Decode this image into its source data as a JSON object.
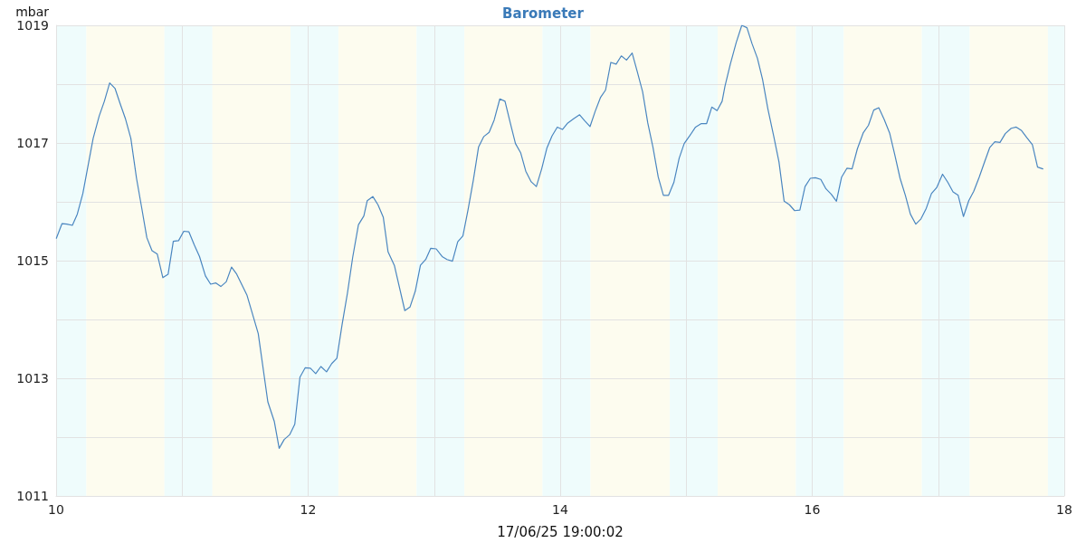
{
  "chart_data": {
    "type": "line",
    "title": "Barometer",
    "xlabel": "17/06/25 19:00:02",
    "ylabel": "mbar",
    "x": [
      10.002,
      10.047,
      10.085,
      10.129,
      10.168,
      10.212,
      10.294,
      10.342,
      10.383,
      10.425,
      10.467,
      10.508,
      10.549,
      10.593,
      10.638,
      10.679,
      10.72,
      10.761,
      10.803,
      10.847,
      10.889,
      10.93,
      10.972,
      11.013,
      11.054,
      11.096,
      11.138,
      11.185,
      11.226,
      11.268,
      11.307,
      11.35,
      11.392,
      11.433,
      11.515,
      11.604,
      11.68,
      11.731,
      11.77,
      11.81,
      11.853,
      11.894,
      11.935,
      11.977,
      12.018,
      12.06,
      12.101,
      12.146,
      12.187,
      12.228,
      12.269,
      12.312,
      12.353,
      12.399,
      12.442,
      12.469,
      12.513,
      12.554,
      12.596,
      12.634,
      12.684,
      12.725,
      12.767,
      12.808,
      12.85,
      12.891,
      12.933,
      12.973,
      13.016,
      13.063,
      13.102,
      13.145,
      13.187,
      13.228,
      13.27,
      13.311,
      13.352,
      13.394,
      13.436,
      13.476,
      13.521,
      13.562,
      13.604,
      13.645,
      13.687,
      13.727,
      13.77,
      13.811,
      13.853,
      13.894,
      13.935,
      13.977,
      14.018,
      14.06,
      14.106,
      14.154,
      14.194,
      14.237,
      14.278,
      14.319,
      14.36,
      14.402,
      14.444,
      14.485,
      14.526,
      14.571,
      14.612,
      14.654,
      14.695,
      14.736,
      14.778,
      14.819,
      14.86,
      14.902,
      14.944,
      14.984,
      15.027,
      15.074,
      15.12,
      15.162,
      15.203,
      15.245,
      15.285,
      15.307,
      15.35,
      15.397,
      15.441,
      15.482,
      15.522,
      15.565,
      15.606,
      15.648,
      15.695,
      15.736,
      15.777,
      15.819,
      15.86,
      15.902,
      15.943,
      15.985,
      16.025,
      16.068,
      16.109,
      16.151,
      16.192,
      16.233,
      16.275,
      16.316,
      16.358,
      16.404,
      16.446,
      16.488,
      16.528,
      16.571,
      16.614,
      16.656,
      16.697,
      16.739,
      16.779,
      16.822,
      16.863,
      16.905,
      16.946,
      16.987,
      17.034,
      17.076,
      17.117,
      17.158,
      17.2,
      17.242,
      17.282,
      17.325,
      17.366,
      17.408,
      17.449,
      17.49,
      17.532,
      17.579,
      17.619,
      17.661,
      17.703,
      17.747,
      17.788,
      17.83
    ],
    "series": [
      {
        "color": "#4a86c0",
        "values": [
          1015.38,
          1015.63,
          1015.62,
          1015.6,
          1015.79,
          1016.14,
          1017.08,
          1017.46,
          1017.71,
          1018.02,
          1017.93,
          1017.67,
          1017.42,
          1017.08,
          1016.4,
          1015.9,
          1015.39,
          1015.17,
          1015.11,
          1014.71,
          1014.77,
          1015.33,
          1015.34,
          1015.5,
          1015.49,
          1015.27,
          1015.07,
          1014.74,
          1014.6,
          1014.62,
          1014.56,
          1014.64,
          1014.89,
          1014.77,
          1014.41,
          1013.76,
          1012.6,
          1012.27,
          1011.81,
          1011.96,
          1012.04,
          1012.22,
          1013.02,
          1013.18,
          1013.17,
          1013.08,
          1013.2,
          1013.11,
          1013.25,
          1013.34,
          1013.91,
          1014.45,
          1015.05,
          1015.61,
          1015.76,
          1016.02,
          1016.09,
          1015.95,
          1015.74,
          1015.15,
          1014.92,
          1014.54,
          1014.15,
          1014.21,
          1014.48,
          1014.92,
          1015.02,
          1015.21,
          1015.2,
          1015.07,
          1015.02,
          1014.99,
          1015.32,
          1015.42,
          1015.88,
          1016.37,
          1016.93,
          1017.11,
          1017.18,
          1017.39,
          1017.75,
          1017.71,
          1017.34,
          1016.99,
          1016.83,
          1016.52,
          1016.34,
          1016.26,
          1016.56,
          1016.91,
          1017.12,
          1017.27,
          1017.23,
          1017.34,
          1017.41,
          1017.48,
          1017.38,
          1017.28,
          1017.54,
          1017.77,
          1017.9,
          1018.37,
          1018.34,
          1018.48,
          1018.41,
          1018.53,
          1018.21,
          1017.87,
          1017.34,
          1016.93,
          1016.42,
          1016.11,
          1016.11,
          1016.33,
          1016.74,
          1016.99,
          1017.12,
          1017.27,
          1017.33,
          1017.33,
          1017.61,
          1017.55,
          1017.71,
          1017.96,
          1018.34,
          1018.71,
          1019,
          1018.96,
          1018.69,
          1018.44,
          1018.08,
          1017.58,
          1017.11,
          1016.68,
          1016.01,
          1015.95,
          1015.85,
          1015.86,
          1016.26,
          1016.4,
          1016.41,
          1016.38,
          1016.22,
          1016.13,
          1016.01,
          1016.42,
          1016.57,
          1016.56,
          1016.9,
          1017.17,
          1017.3,
          1017.56,
          1017.6,
          1017.4,
          1017.17,
          1016.79,
          1016.4,
          1016.11,
          1015.79,
          1015.62,
          1015.71,
          1015.89,
          1016.14,
          1016.24,
          1016.47,
          1016.33,
          1016.17,
          1016.11,
          1015.75,
          1016.02,
          1016.18,
          1016.42,
          1016.67,
          1016.92,
          1017.02,
          1017.01,
          1017.16,
          1017.25,
          1017.27,
          1017.21,
          1017.09,
          1016.97,
          1016.59,
          1016.56
        ]
      }
    ],
    "xlim": [
      10,
      18
    ],
    "xticks": [
      10,
      {
        "value": 11,
        "label": null
      },
      12,
      {
        "value": 13,
        "label": null
      },
      14,
      {
        "value": 15,
        "label": null
      },
      16,
      {
        "value": 17,
        "label": null
      },
      18
    ],
    "ylim": [
      1011,
      1019
    ],
    "yticks": [
      1011,
      {
        "value": 1012,
        "label": null
      },
      1013,
      {
        "value": 1014,
        "label": null
      },
      1015,
      {
        "value": 1016,
        "label": null
      },
      1017,
      {
        "value": 1018,
        "label": null
      },
      1019
    ],
    "bands": [
      {
        "axis": "x",
        "from": 10,
        "to": 10.24,
        "color": "#effcfc"
      },
      {
        "axis": "x",
        "from": 10.24,
        "to": 10.86,
        "color": "#fdfcef"
      },
      {
        "axis": "x",
        "from": 10.86,
        "to": 11.24,
        "color": "#effcfc"
      },
      {
        "axis": "x",
        "from": 11.24,
        "to": 11.86,
        "color": "#fdfcef"
      },
      {
        "axis": "x",
        "from": 11.86,
        "to": 12.24,
        "color": "#effcfc"
      },
      {
        "axis": "x",
        "from": 12.24,
        "to": 12.86,
        "color": "#fdfcef"
      },
      {
        "axis": "x",
        "from": 12.86,
        "to": 13.24,
        "color": "#effcfc"
      },
      {
        "axis": "x",
        "from": 13.24,
        "to": 13.86,
        "color": "#fdfcef"
      },
      {
        "axis": "x",
        "from": 13.86,
        "to": 14.24,
        "color": "#effcfc"
      },
      {
        "axis": "x",
        "from": 14.24,
        "to": 14.87,
        "color": "#fdfcef"
      },
      {
        "axis": "x",
        "from": 14.87,
        "to": 15.25,
        "color": "#effcfc"
      },
      {
        "axis": "x",
        "from": 15.25,
        "to": 15.87,
        "color": "#fdfcef"
      },
      {
        "axis": "x",
        "from": 15.87,
        "to": 16.25,
        "color": "#effcfc"
      },
      {
        "axis": "x",
        "from": 16.25,
        "to": 16.87,
        "color": "#fdfcef"
      },
      {
        "axis": "x",
        "from": 16.87,
        "to": 17.25,
        "color": "#effcfc"
      },
      {
        "axis": "x",
        "from": 17.25,
        "to": 17.87,
        "color": "#fdfcef"
      },
      {
        "axis": "x",
        "from": 17.87,
        "to": 18,
        "color": "#effcfc"
      }
    ],
    "grid": true,
    "marker": "none",
    "line_style": "solid"
  }
}
